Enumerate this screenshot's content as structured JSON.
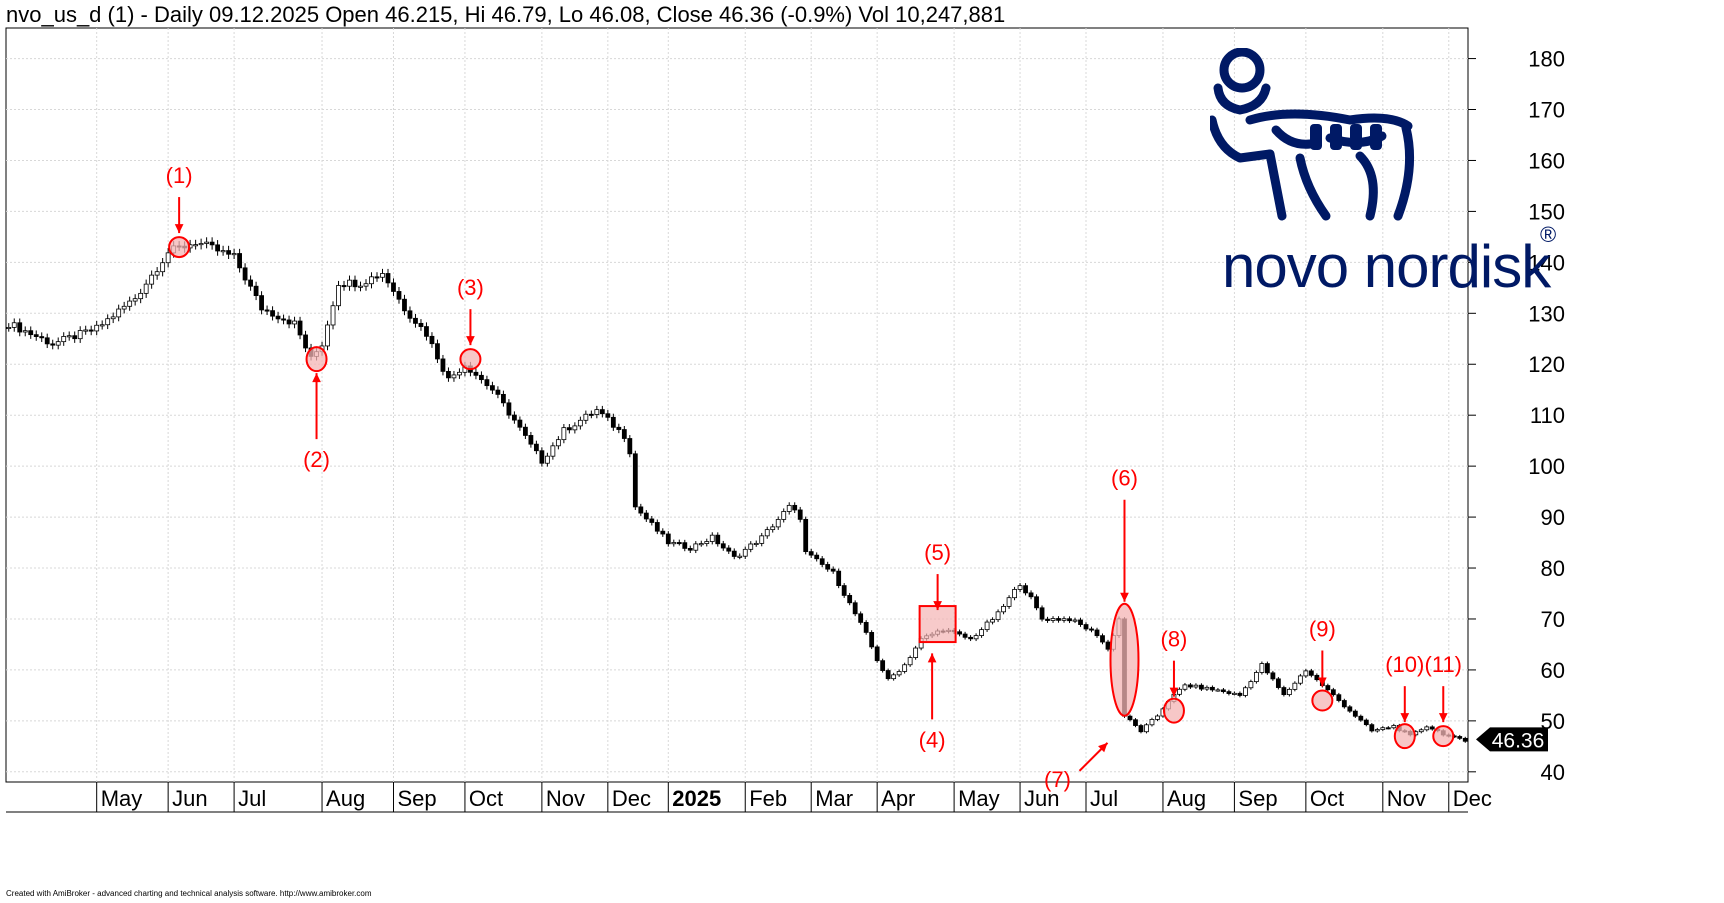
{
  "header": {
    "title": "nvo_us_d (1) - Daily 09.12.2025 Open 46.215, Hi 46.79, Lo 46.08, Close 46.36 (-0.9%) Vol 10,247,881"
  },
  "footer": {
    "credit": "Created with AmiBroker - advanced charting and technical analysis software. http://www.amibroker.com"
  },
  "logo": {
    "text": "novo nordisk",
    "mark": "®",
    "icon": "bull-icon",
    "color": "#001965"
  },
  "chart_data": {
    "type": "candlestick",
    "ylim": [
      38,
      186
    ],
    "y_ticks": [
      40,
      50,
      60,
      70,
      80,
      90,
      100,
      110,
      120,
      130,
      140,
      150,
      160,
      170,
      180
    ],
    "grid": true,
    "axis_position": "right",
    "last_price": "46.36",
    "colors": {
      "annotation": "#ff0000",
      "highlight_fill": "#f4b4b4",
      "price_label_bg": "#000000",
      "bar": "#000000"
    },
    "month_labels": [
      {
        "label": "May",
        "index": 16
      },
      {
        "label": "Jun",
        "index": 29
      },
      {
        "label": "Jul",
        "index": 41
      },
      {
        "label": "Aug",
        "index": 57
      },
      {
        "label": "Sep",
        "index": 70
      },
      {
        "label": "Oct",
        "index": 83
      },
      {
        "label": "Nov",
        "index": 97
      },
      {
        "label": "Dec",
        "index": 109
      },
      {
        "label": "2025",
        "index": 120,
        "bold": true
      },
      {
        "label": "Feb",
        "index": 134
      },
      {
        "label": "Mar",
        "index": 146
      },
      {
        "label": "Apr",
        "index": 158
      },
      {
        "label": "May",
        "index": 172
      },
      {
        "label": "Jun",
        "index": 184
      },
      {
        "label": "Jul",
        "index": 196
      },
      {
        "label": "Aug",
        "index": 210
      },
      {
        "label": "Sep",
        "index": 223
      },
      {
        "label": "Oct",
        "index": 236
      },
      {
        "label": "Nov",
        "index": 250
      },
      {
        "label": "Dec",
        "index": 262
      }
    ],
    "anchors": [
      [
        0,
        128
      ],
      [
        8,
        124
      ],
      [
        16,
        127
      ],
      [
        23,
        133
      ],
      [
        29,
        142
      ],
      [
        34,
        144
      ],
      [
        41,
        141
      ],
      [
        46,
        131
      ],
      [
        52,
        128
      ],
      [
        55,
        121
      ],
      [
        57,
        124
      ],
      [
        60,
        136
      ],
      [
        64,
        136
      ],
      [
        68,
        138
      ],
      [
        72,
        131
      ],
      [
        76,
        126
      ],
      [
        80,
        117
      ],
      [
        83,
        120
      ],
      [
        88,
        115
      ],
      [
        92,
        109
      ],
      [
        95,
        104
      ],
      [
        97,
        101
      ],
      [
        101,
        107
      ],
      [
        107,
        111
      ],
      [
        112,
        106
      ],
      [
        113,
        103
      ],
      [
        114,
        92
      ],
      [
        120,
        85
      ],
      [
        124,
        84
      ],
      [
        128,
        86
      ],
      [
        132,
        82
      ],
      [
        137,
        86
      ],
      [
        142,
        92
      ],
      [
        144,
        90
      ],
      [
        145,
        83
      ],
      [
        150,
        79
      ],
      [
        156,
        67
      ],
      [
        158,
        62
      ],
      [
        160,
        58
      ],
      [
        163,
        61
      ],
      [
        166,
        66
      ],
      [
        170,
        68
      ],
      [
        175,
        66
      ],
      [
        180,
        71
      ],
      [
        184,
        77
      ],
      [
        186,
        74
      ],
      [
        188,
        70
      ],
      [
        193,
        70
      ],
      [
        198,
        67
      ],
      [
        200,
        64
      ],
      [
        202,
        70
      ],
      [
        203,
        51
      ],
      [
        206,
        48
      ],
      [
        209,
        51
      ],
      [
        211,
        54
      ],
      [
        214,
        57
      ],
      [
        220,
        56
      ],
      [
        224,
        55
      ],
      [
        228,
        61
      ],
      [
        232,
        55
      ],
      [
        236,
        60
      ],
      [
        240,
        56
      ],
      [
        244,
        52
      ],
      [
        248,
        48
      ],
      [
        252,
        49
      ],
      [
        255,
        47
      ],
      [
        258,
        49
      ],
      [
        262,
        47
      ],
      [
        265,
        46
      ]
    ],
    "annotations": [
      {
        "label": "(1)",
        "index": 31,
        "price": 143,
        "shape": "circle",
        "arrow": "down"
      },
      {
        "label": "(2)",
        "index": 56,
        "price": 121,
        "shape": "ellipse",
        "arrow": "up"
      },
      {
        "label": "(3)",
        "index": 84,
        "price": 121,
        "shape": "circle",
        "arrow": "down"
      },
      {
        "label": "(4)",
        "index": 168,
        "price": 66,
        "shape": "none",
        "arrow": "up"
      },
      {
        "label": "(5)",
        "index": 169,
        "price": 69,
        "shape": "rect",
        "arrow": "down"
      },
      {
        "label": "(6)",
        "index": 203,
        "price": 62,
        "shape": "ellipse",
        "arrow": "down"
      },
      {
        "label": "(7)",
        "index": 201,
        "price": 50,
        "shape": "none",
        "arrow": "up-right"
      },
      {
        "label": "(8)",
        "index": 212,
        "price": 52,
        "shape": "ellipse",
        "arrow": "down"
      },
      {
        "label": "(9)",
        "index": 239,
        "price": 54,
        "shape": "circle",
        "arrow": "down"
      },
      {
        "label": "(10)",
        "index": 254,
        "price": 47,
        "shape": "ellipse",
        "arrow": "down"
      },
      {
        "label": "(11)",
        "index": 261,
        "price": 47,
        "shape": "circle",
        "arrow": "down"
      }
    ]
  }
}
